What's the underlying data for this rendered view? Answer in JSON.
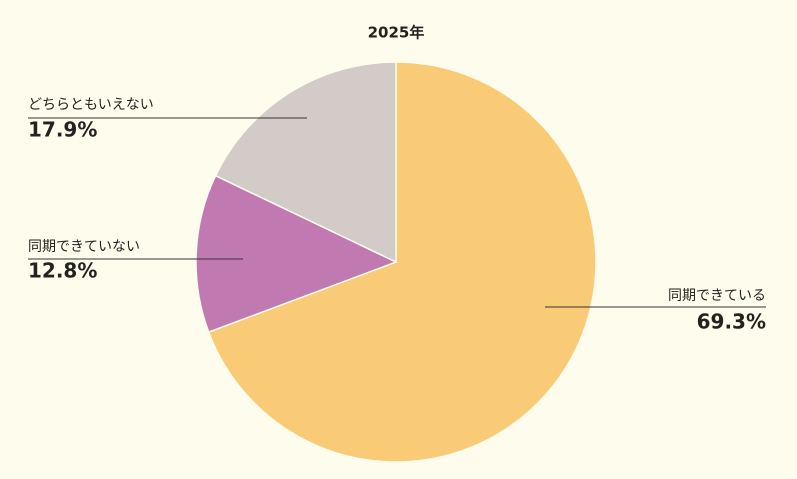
{
  "chart_data": {
    "type": "pie",
    "title": "2025年",
    "categories": [
      "同期できている",
      "同期できていない",
      "どちらともいえない"
    ],
    "values": [
      69.3,
      12.8,
      17.9
    ],
    "value_labels": [
      "69.3%",
      "12.8%",
      "17.9%"
    ],
    "colors": [
      "#f9cb76",
      "#c07ab1",
      "#d3cbc7"
    ]
  }
}
